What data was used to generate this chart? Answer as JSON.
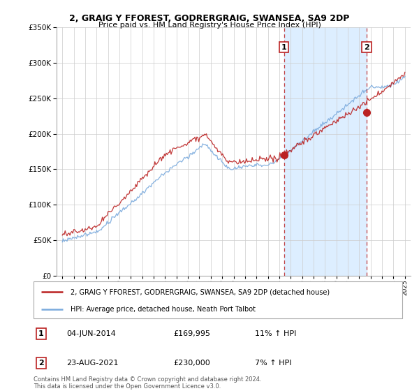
{
  "title": "2, GRAIG Y FFOREST, GODRERGRAIG, SWANSEA, SA9 2DP",
  "subtitle": "Price paid vs. HM Land Registry's House Price Index (HPI)",
  "legend_line1": "2, GRAIG Y FFOREST, GODRERGRAIG, SWANSEA, SA9 2DP (detached house)",
  "legend_line2": "HPI: Average price, detached house, Neath Port Talbot",
  "annotation1_label": "1",
  "annotation1_date": "04-JUN-2014",
  "annotation1_price": "£169,995",
  "annotation1_pct": "11% ↑ HPI",
  "annotation2_label": "2",
  "annotation2_date": "23-AUG-2021",
  "annotation2_price": "£230,000",
  "annotation2_pct": "7% ↑ HPI",
  "footer": "Contains HM Land Registry data © Crown copyright and database right 2024.\nThis data is licensed under the Open Government Licence v3.0.",
  "red_color": "#bb2222",
  "blue_color": "#7aaadd",
  "shade_color": "#ddeeff",
  "vline1_x": 2014.42,
  "vline2_x": 2021.64,
  "point1_x": 2014.42,
  "point1_y": 169995,
  "point2_x": 2021.64,
  "point2_y": 230000,
  "ylim": [
    0,
    350000
  ],
  "xlim_start": 1994.5,
  "xlim_end": 2025.5
}
